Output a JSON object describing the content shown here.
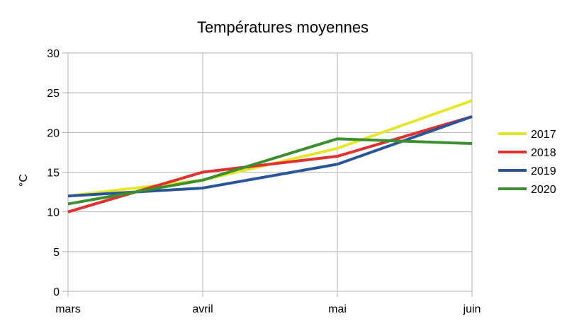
{
  "chart_data": {
    "type": "line",
    "title": "Températures moyennes",
    "xlabel": "",
    "ylabel": "°C",
    "categories": [
      "mars",
      "avril",
      "mai",
      "juin"
    ],
    "ylim": [
      0,
      30
    ],
    "yticks": [
      "0",
      "5",
      "10",
      "15",
      "20",
      "25",
      "30"
    ],
    "grid": true,
    "legend_position": "right",
    "series": [
      {
        "name": "2017",
        "color": "#e6e62e",
        "values": [
          12,
          14,
          18,
          24
        ]
      },
      {
        "name": "2018",
        "color": "#e03030",
        "values": [
          10,
          15,
          17,
          22
        ]
      },
      {
        "name": "2019",
        "color": "#2a5599",
        "values": [
          12,
          13,
          16,
          22
        ]
      },
      {
        "name": "2020",
        "color": "#3b8f2f",
        "values": [
          11,
          14,
          19.2,
          18.6
        ]
      }
    ]
  }
}
